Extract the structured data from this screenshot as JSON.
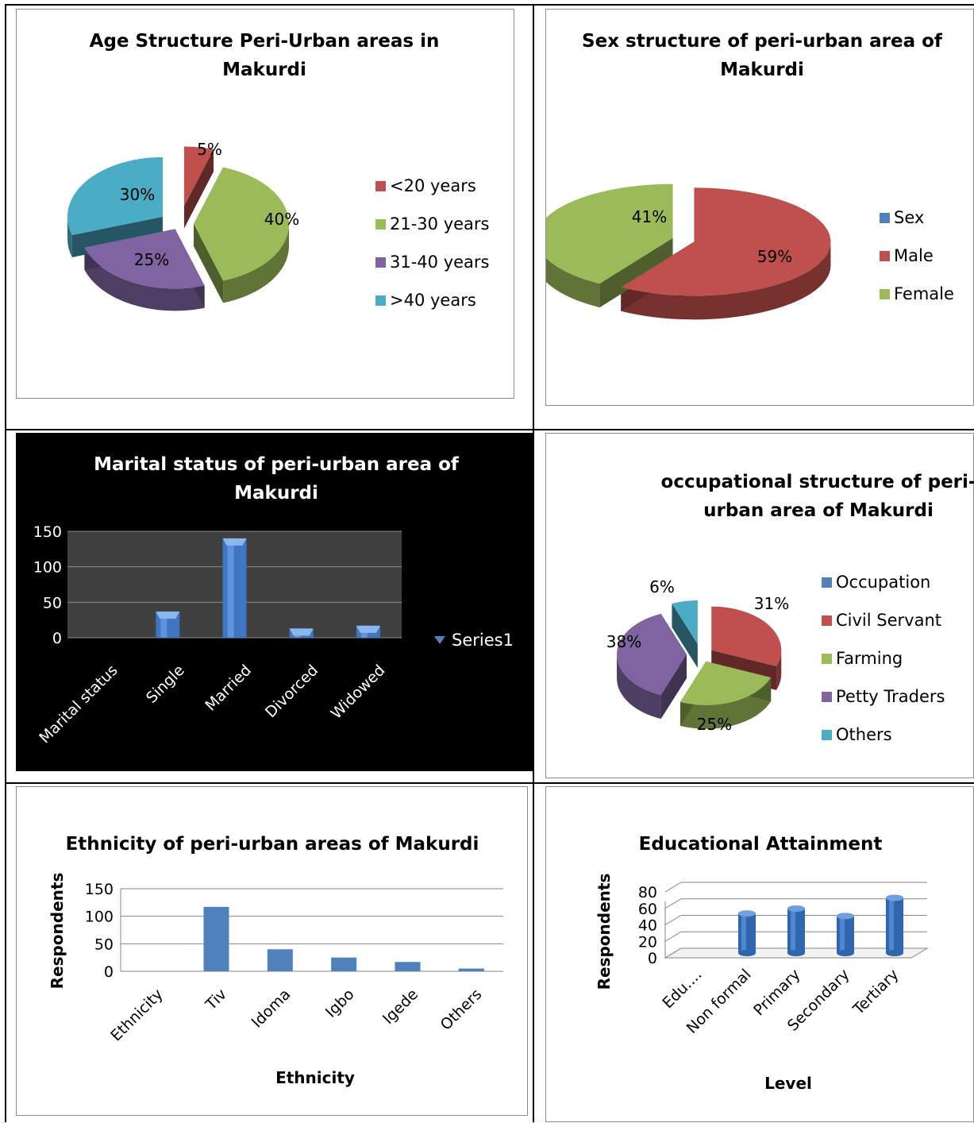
{
  "chart_data": [
    {
      "type": "pie",
      "title": "Age Structure Peri-Urban areas in Makurdi",
      "title_lines": [
        "Age Structure Peri-Urban areas in",
        "Makurdi"
      ],
      "categories": [
        "<20 years",
        "21-30 years",
        "31-40 years",
        ">40 years"
      ],
      "values": [
        5,
        40,
        25,
        30
      ],
      "labels": [
        "5%",
        "40%",
        "25%",
        "30%"
      ],
      "colors": [
        "#c0504d",
        "#9bbb59",
        "#8064a2",
        "#4bacc6"
      ],
      "legend": "right"
    },
    {
      "type": "pie",
      "title": "Sex structure of peri-urban area of Makurdi",
      "title_lines": [
        "Sex structure of peri-urban area of",
        "Makurdi"
      ],
      "categories": [
        "Sex",
        "Male",
        "Female"
      ],
      "values": [
        0,
        59,
        41
      ],
      "labels": [
        "",
        "59%",
        "41%"
      ],
      "colors": [
        "#4f81bd",
        "#c0504d",
        "#9bbb59"
      ],
      "legend": "right"
    },
    {
      "type": "bar",
      "title": "Marital status of peri-urban area of Makurdi",
      "title_lines": [
        "Marital status of peri-urban area of",
        "Makurdi"
      ],
      "categories": [
        "Marital status",
        "Single",
        "Married",
        "Divorced",
        "Widowed"
      ],
      "series": [
        {
          "name": "Series1",
          "values": [
            0,
            37,
            140,
            13,
            17
          ]
        }
      ],
      "yticks": [
        "150",
        "100",
        "50",
        "0"
      ],
      "ylim": [
        0,
        150
      ],
      "legend": "right"
    },
    {
      "type": "pie",
      "title": "occupational structure of peri-urban area of Makurdi",
      "title_lines": [
        "occupational structure of peri-",
        "urban area of Makurdi"
      ],
      "categories": [
        "Occupation",
        "Civil Servant",
        "Farming",
        "Petty Traders",
        "Others"
      ],
      "values": [
        0,
        31,
        25,
        38,
        6
      ],
      "labels": [
        "",
        "31%",
        "25%",
        "38%",
        "6%"
      ],
      "colors": [
        "#4f81bd",
        "#c0504d",
        "#9bbb59",
        "#8064a2",
        "#4bacc6"
      ],
      "legend": "right"
    },
    {
      "type": "bar",
      "title": "Ethnicity of peri-urban areas of Makurdi",
      "title_lines": [
        "Ethnicity of peri-urban areas of Makurdi"
      ],
      "categories": [
        "Ethnicity",
        "Tiv",
        "Idoma",
        "Igbo",
        "Igede",
        "Others"
      ],
      "values": [
        0,
        117,
        40,
        25,
        17,
        5
      ],
      "yticks": [
        "150",
        "100",
        "50",
        "0"
      ],
      "ylim": [
        0,
        150
      ],
      "xlabel": "Ethnicity",
      "ylabel": "Respondents"
    },
    {
      "type": "bar",
      "title": "Educational Attainment",
      "title_lines": [
        "Educational Attainment"
      ],
      "categories": [
        "Edu....",
        "Non formal",
        "Primary",
        "Secondary",
        "Tertiary"
      ],
      "values": [
        0,
        48,
        54,
        45,
        67
      ],
      "yticks": [
        "80",
        "60",
        "40",
        "20",
        "0"
      ],
      "ylim": [
        0,
        80
      ],
      "xlabel": "Level",
      "ylabel": "Respondents"
    }
  ]
}
